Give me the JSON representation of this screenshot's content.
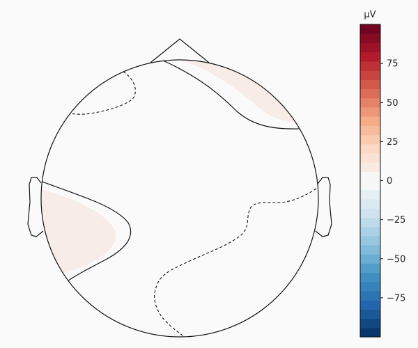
{
  "chart_data": {
    "type": "heatmap",
    "kind": "eeg-topomap",
    "title": "",
    "colorbar": {
      "unit_label": "µV",
      "vmin": -100,
      "vmax": 100,
      "ticks": [
        75,
        50,
        25,
        0,
        -25,
        -50,
        -75
      ],
      "colormap": "RdBu_r",
      "levels": 34
    },
    "regions": [
      {
        "name": "frontal-right-positive",
        "value": 5,
        "color": "#f7ece8"
      },
      {
        "name": "temporal-left-positive",
        "value": 5,
        "color": "#f7ece8"
      },
      {
        "name": "background-zero",
        "value": 0,
        "color": "#fafafa"
      }
    ],
    "contours": [
      {
        "name": "frontal-left-negative",
        "value": -3,
        "style": "dashed"
      },
      {
        "name": "central-right-negative",
        "value": -3,
        "style": "dashed"
      },
      {
        "name": "frontal-right-zero",
        "value": 0,
        "style": "solid"
      },
      {
        "name": "temporal-left-zero",
        "value": 0,
        "style": "solid"
      }
    ]
  }
}
